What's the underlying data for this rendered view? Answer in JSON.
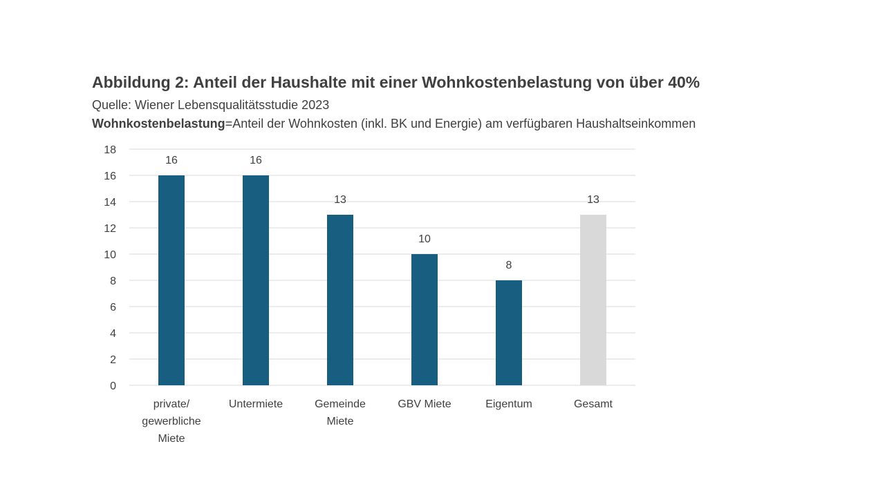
{
  "header": {
    "title": "Abbildung 2: Anteil der Haushalte mit einer Wohnkostenbelastung von über 40%",
    "source": "Quelle: Wiener Lebensqualitätsstudie 2023",
    "definition_term": "Wohnkostenbelastung",
    "definition_text": "=Anteil der Wohnkosten (inkl. BK und Energie) am verfügbaren Haushaltseinkommen"
  },
  "chart_data": {
    "type": "bar",
    "title": "Abbildung 2: Anteil der Haushalte mit einer Wohnkostenbelastung von über 40%",
    "categories": [
      [
        "private/",
        "gewerbliche",
        "Miete"
      ],
      [
        "Untermiete"
      ],
      [
        "Gemeinde",
        "Miete"
      ],
      [
        "GBV Miete"
      ],
      [
        "Eigentum"
      ],
      [
        "Gesamt"
      ]
    ],
    "values": [
      16,
      16,
      13,
      10,
      8,
      13
    ],
    "data_labels": [
      "16",
      "16",
      "13",
      "10",
      "8",
      "13"
    ],
    "bar_colors": [
      "#175e80",
      "#175e80",
      "#175e80",
      "#175e80",
      "#175e80",
      "#d9d9d9"
    ],
    "ylim": [
      0,
      18
    ],
    "yticks": [
      0,
      2,
      4,
      6,
      8,
      10,
      12,
      14,
      16,
      18
    ],
    "grid": true,
    "legend": "none",
    "xlabel": "",
    "ylabel": ""
  },
  "colors": {
    "bar_primary": "#175e80",
    "bar_total": "#d9d9d9",
    "gridline": "#d9d9d9",
    "text": "#404040"
  }
}
